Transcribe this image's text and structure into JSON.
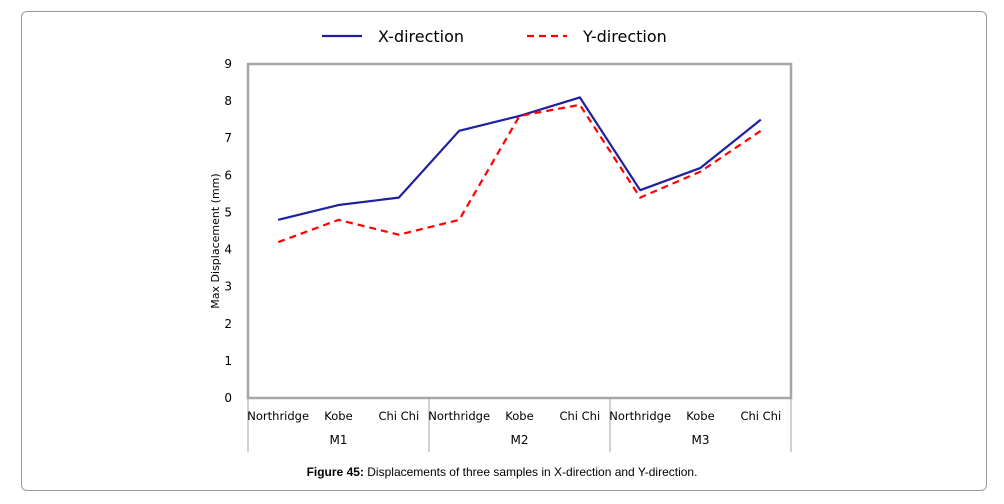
{
  "caption": {
    "label": "Figure 45:",
    "text": "Displacements of three samples in X-direction and Y-direction."
  },
  "chart_data": {
    "type": "line",
    "title": "",
    "xlabel": "",
    "ylabel": "Max Displacement (mm)",
    "ylim": [
      0,
      9
    ],
    "yticks": [
      0,
      1,
      2,
      3,
      4,
      5,
      6,
      7,
      8,
      9
    ],
    "grid": false,
    "legend_position": "top",
    "categories": [
      "Northridge",
      "Kobe",
      "Chi Chi",
      "Northridge",
      "Kobe",
      "Chi Chi",
      "Northridge",
      "Kobe",
      "Chi Chi"
    ],
    "groups": [
      "M1",
      "M2",
      "M3"
    ],
    "series": [
      {
        "name": "X-direction",
        "color": "#1f1fa0",
        "style": "solid",
        "values": [
          4.8,
          5.2,
          5.4,
          7.2,
          7.6,
          8.1,
          5.6,
          6.2,
          7.5
        ]
      },
      {
        "name": "Y-direction",
        "color": "#ff0000",
        "style": "dashed",
        "values": [
          4.2,
          4.8,
          4.4,
          4.8,
          7.6,
          7.9,
          5.4,
          6.1,
          7.2
        ]
      }
    ]
  }
}
